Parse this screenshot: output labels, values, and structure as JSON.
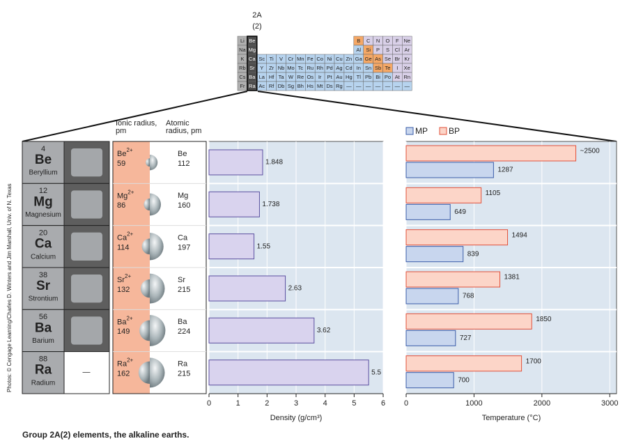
{
  "periodic_table": {
    "group_label": "2A",
    "group_number": "(2)",
    "rows": [
      [
        "Li",
        "Be",
        null,
        null,
        null,
        null,
        null,
        null,
        null,
        null,
        null,
        null,
        "B",
        "C",
        "N",
        "O",
        "F",
        "Ne"
      ],
      [
        "Na",
        "Mg",
        null,
        null,
        null,
        null,
        null,
        null,
        null,
        null,
        null,
        null,
        "Al",
        "Si",
        "P",
        "S",
        "Cl",
        "Ar"
      ],
      [
        "K",
        "Ca",
        "Sc",
        "Ti",
        "V",
        "Cr",
        "Mn",
        "Fe",
        "Co",
        "Ni",
        "Cu",
        "Zn",
        "Ga",
        "Ge",
        "As",
        "Se",
        "Br",
        "Kr"
      ],
      [
        "Rb",
        "Sr",
        "Y",
        "Zr",
        "Nb",
        "Mo",
        "Tc",
        "Ru",
        "Rh",
        "Pd",
        "Ag",
        "Cd",
        "In",
        "Sn",
        "Sb",
        "Te",
        "I",
        "Xe"
      ],
      [
        "Cs",
        "Ba",
        "La",
        "Hf",
        "Ta",
        "W",
        "Re",
        "Os",
        "Ir",
        "Pt",
        "Au",
        "Hg",
        "Tl",
        "Pb",
        "Bi",
        "Po",
        "At",
        "Rn"
      ],
      [
        "Fr",
        "Ra",
        "Ac",
        "Rf",
        "Db",
        "Sg",
        "Bh",
        "Hs",
        "Mt",
        "Ds",
        "Rg",
        "—",
        "—",
        "—",
        "—",
        "—",
        "—",
        "—"
      ]
    ]
  },
  "table": {
    "headers": {
      "ionic": "Ionic radius, pm",
      "atomic": "Atomic radius, pm"
    },
    "elements": [
      {
        "number": 4,
        "symbol": "Be",
        "name": "Beryllium",
        "ion": "Be",
        "charge": "2+",
        "ionic_radius": 59,
        "atomic_symbol": "Be",
        "atomic_radius": 112
      },
      {
        "number": 12,
        "symbol": "Mg",
        "name": "Magnesium",
        "ion": "Mg",
        "charge": "2+",
        "ionic_radius": 86,
        "atomic_symbol": "Mg",
        "atomic_radius": 160
      },
      {
        "number": 20,
        "symbol": "Ca",
        "name": "Calcium",
        "ion": "Ca",
        "charge": "2+",
        "ionic_radius": 114,
        "atomic_symbol": "Ca",
        "atomic_radius": 197
      },
      {
        "number": 38,
        "symbol": "Sr",
        "name": "Strontium",
        "ion": "Sr",
        "charge": "2+",
        "ionic_radius": 132,
        "atomic_symbol": "Sr",
        "atomic_radius": 215
      },
      {
        "number": 56,
        "symbol": "Ba",
        "name": "Barium",
        "ion": "Ba",
        "charge": "2+",
        "ionic_radius": 149,
        "atomic_symbol": "Ba",
        "atomic_radius": 224
      },
      {
        "number": 88,
        "symbol": "Ra",
        "name": "Radium",
        "ion": "Ra",
        "charge": "2+",
        "ionic_radius": 162,
        "atomic_symbol": "Ra",
        "atomic_radius": 215,
        "photo_note": "—"
      }
    ]
  },
  "chart_data": [
    {
      "type": "bar",
      "orientation": "horizontal",
      "xlabel": "Density (g/cm³)",
      "values": [
        1.848,
        1.738,
        1.55,
        2.63,
        3.62,
        5.5
      ],
      "color": "#d9d3ee",
      "edge_color": "#5a4fa0",
      "xlim": [
        0,
        6
      ],
      "xticks": [
        0,
        1,
        2,
        3,
        4,
        5,
        6
      ]
    },
    {
      "type": "grouped_bar",
      "orientation": "horizontal",
      "xlabel": "Temperature (°C)",
      "legend": "top-left",
      "series": [
        {
          "name": "BP",
          "color": "#fcd5c8",
          "edge_color": "#e0503a",
          "values": [
            2500,
            1105,
            1494,
            1381,
            1850,
            1700
          ],
          "value_labels": [
            "~2500",
            "1105",
            "1494",
            "1381",
            "1850",
            "1700"
          ]
        },
        {
          "name": "MP",
          "color": "#c8d6ee",
          "edge_color": "#3a5ca8",
          "values": [
            1287,
            649,
            839,
            768,
            727,
            700
          ]
        }
      ],
      "xlim": [
        0,
        3100
      ],
      "xticks": [
        0,
        1000,
        2000,
        3000
      ]
    }
  ],
  "caption": "Group 2A(2) elements, the alkaline earths.",
  "credit": "Photos: © Cengage Learning/Charles D. Winters and Jim Marshall, Univ. of N. Texas"
}
